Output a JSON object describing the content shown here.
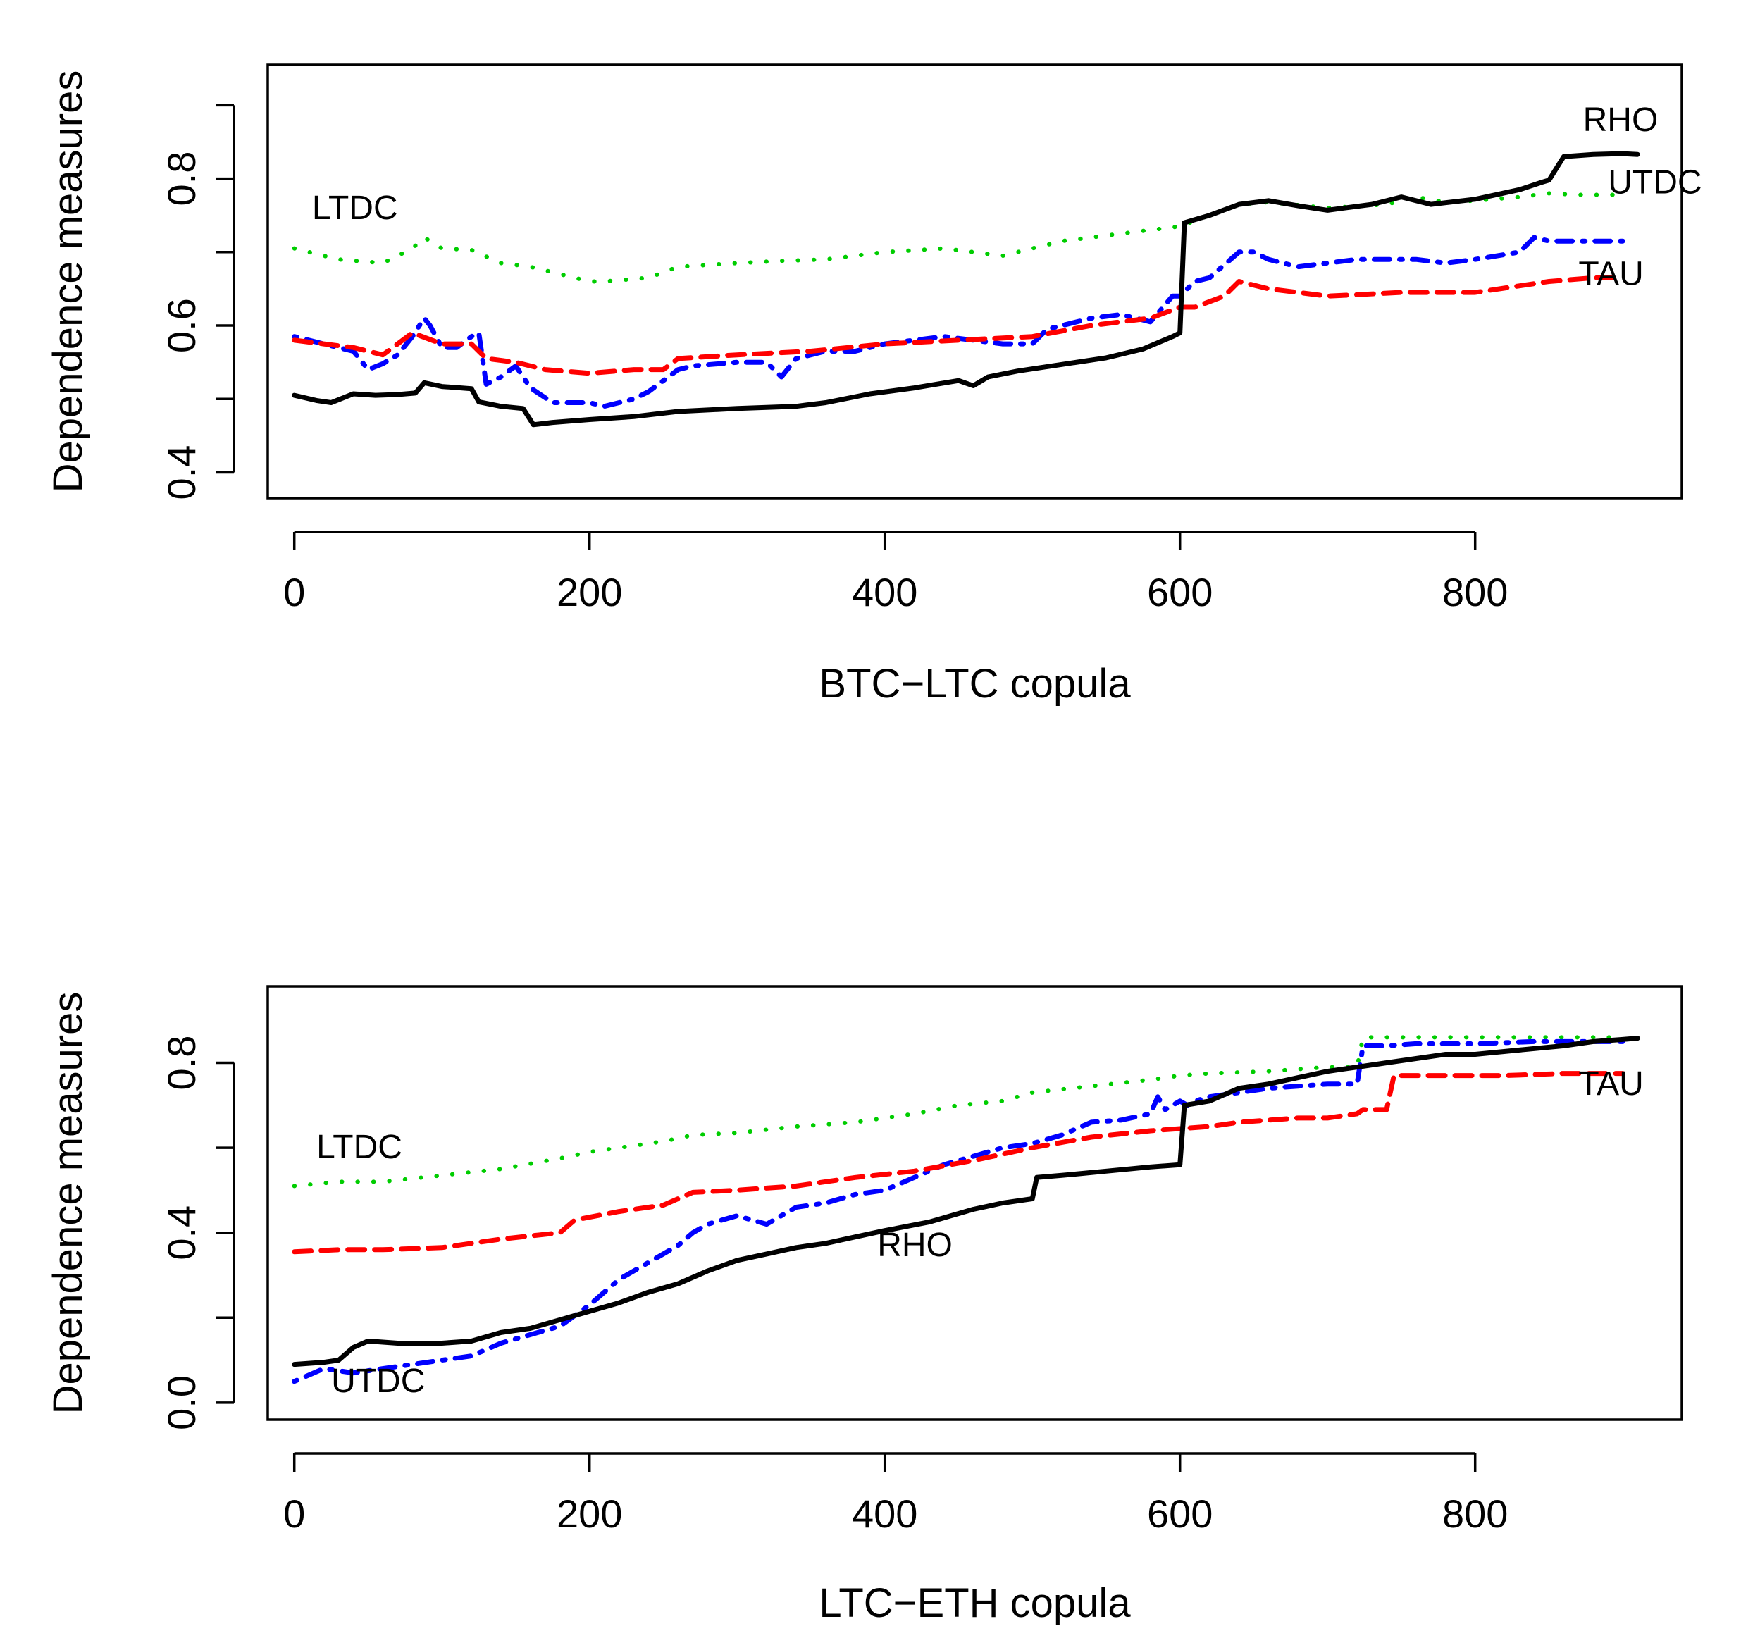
{
  "colors": {
    "RHO": "#000000",
    "TAU": "#ff0000",
    "UTDC": "#0000ff",
    "LTDC": "#00cd00"
  },
  "chart_data": [
    {
      "type": "line",
      "xlabel": "BTC−LTC copula",
      "ylabel": "Dependence measures",
      "xlim": [
        -18,
        940
      ],
      "ylim": [
        0.365,
        0.955
      ],
      "xticks": [
        "0",
        "200",
        "400",
        "600",
        "800"
      ],
      "yticks": [
        "0.4",
        "0.6",
        "0.8"
      ],
      "grid": false,
      "labels": [
        {
          "text": "RHO",
          "series": "RHO",
          "x": 873,
          "y": 0.865
        },
        {
          "text": "UTDC",
          "series": "UTDC",
          "x": 890,
          "y": 0.78
        },
        {
          "text": "TAU",
          "series": "TAU",
          "x": 870,
          "y": 0.655
        },
        {
          "text": "LTDC",
          "series": "LTDC",
          "x": 12,
          "y": 0.745
        }
      ],
      "series": [
        {
          "name": "RHO",
          "style": "solid",
          "x": [
            0,
            15,
            25,
            40,
            55,
            70,
            82,
            88,
            100,
            120,
            125,
            140,
            155,
            162,
            175,
            200,
            230,
            260,
            300,
            340,
            360,
            390,
            420,
            450,
            460,
            470,
            490,
            520,
            550,
            575,
            595,
            600,
            603,
            620,
            640,
            660,
            680,
            700,
            730,
            750,
            770,
            800,
            830,
            845,
            850,
            860,
            880,
            900,
            910
          ],
          "y": [
            0.505,
            0.498,
            0.495,
            0.507,
            0.505,
            0.506,
            0.508,
            0.522,
            0.517,
            0.514,
            0.496,
            0.49,
            0.487,
            0.465,
            0.468,
            0.472,
            0.476,
            0.483,
            0.487,
            0.49,
            0.495,
            0.507,
            0.515,
            0.525,
            0.518,
            0.53,
            0.538,
            0.547,
            0.556,
            0.568,
            0.585,
            0.59,
            0.74,
            0.75,
            0.765,
            0.77,
            0.763,
            0.757,
            0.765,
            0.775,
            0.765,
            0.772,
            0.785,
            0.795,
            0.798,
            0.83,
            0.833,
            0.834,
            0.833
          ]
        },
        {
          "name": "TAU",
          "style": "dashed",
          "x": [
            0,
            20,
            40,
            60,
            80,
            100,
            120,
            130,
            150,
            170,
            200,
            230,
            250,
            260,
            300,
            350,
            400,
            450,
            500,
            540,
            580,
            600,
            610,
            630,
            640,
            660,
            700,
            750,
            800,
            850,
            880,
            900
          ],
          "y": [
            0.58,
            0.575,
            0.57,
            0.56,
            0.59,
            0.575,
            0.575,
            0.555,
            0.55,
            0.54,
            0.535,
            0.54,
            0.54,
            0.555,
            0.56,
            0.565,
            0.575,
            0.58,
            0.585,
            0.6,
            0.61,
            0.625,
            0.625,
            0.64,
            0.66,
            0.65,
            0.64,
            0.645,
            0.645,
            0.66,
            0.665,
            0.665
          ]
        },
        {
          "name": "UTDC",
          "style": "dotdash",
          "x": [
            0,
            20,
            40,
            50,
            60,
            70,
            80,
            88,
            92,
            100,
            110,
            120,
            125,
            130,
            140,
            150,
            160,
            175,
            190,
            200,
            210,
            230,
            240,
            260,
            270,
            300,
            320,
            330,
            340,
            360,
            380,
            400,
            440,
            460,
            480,
            500,
            510,
            540,
            560,
            580,
            595,
            600,
            610,
            620,
            640,
            650,
            660,
            680,
            700,
            720,
            740,
            760,
            780,
            800,
            830,
            840,
            850,
            870,
            900
          ],
          "y": [
            0.585,
            0.575,
            0.565,
            0.54,
            0.548,
            0.56,
            0.585,
            0.61,
            0.6,
            0.57,
            0.57,
            0.585,
            0.59,
            0.52,
            0.53,
            0.545,
            0.515,
            0.495,
            0.495,
            0.495,
            0.49,
            0.5,
            0.51,
            0.54,
            0.545,
            0.55,
            0.55,
            0.53,
            0.555,
            0.565,
            0.565,
            0.575,
            0.585,
            0.58,
            0.575,
            0.575,
            0.595,
            0.61,
            0.615,
            0.605,
            0.64,
            0.64,
            0.66,
            0.665,
            0.7,
            0.7,
            0.69,
            0.68,
            0.685,
            0.69,
            0.69,
            0.69,
            0.685,
            0.69,
            0.7,
            0.72,
            0.715,
            0.715,
            0.715
          ]
        },
        {
          "name": "LTDC",
          "style": "dotted",
          "x": [
            0,
            30,
            60,
            80,
            88,
            100,
            120,
            140,
            160,
            180,
            200,
            210,
            240,
            260,
            300,
            330,
            360,
            400,
            440,
            460,
            480,
            500,
            520,
            560,
            600,
            620,
            640,
            660,
            700,
            740,
            760,
            780,
            800,
            830,
            850,
            870,
            900
          ],
          "y": [
            0.705,
            0.69,
            0.685,
            0.705,
            0.72,
            0.705,
            0.703,
            0.685,
            0.68,
            0.67,
            0.66,
            0.66,
            0.665,
            0.68,
            0.685,
            0.688,
            0.69,
            0.7,
            0.705,
            0.7,
            0.695,
            0.705,
            0.715,
            0.725,
            0.735,
            0.75,
            0.765,
            0.768,
            0.76,
            0.765,
            0.775,
            0.768,
            0.77,
            0.775,
            0.78,
            0.778,
            0.778
          ]
        }
      ]
    },
    {
      "type": "line",
      "xlabel": "LTC−ETH copula",
      "ylabel": "Dependence measures",
      "xlim": [
        -18,
        940
      ],
      "ylim": [
        -0.04,
        0.98
      ],
      "xticks": [
        "0",
        "200",
        "400",
        "600",
        "800"
      ],
      "yticks": [
        "0.0",
        "0.4",
        "0.8"
      ],
      "grid": false,
      "labels": [
        {
          "text": "TAU",
          "series": "TAU",
          "x": 870,
          "y": 0.725
        },
        {
          "text": "LTDC",
          "series": "LTDC",
          "x": 15,
          "y": 0.575
        },
        {
          "text": "RHO",
          "series": "RHO",
          "x": 395,
          "y": 0.345
        },
        {
          "text": "UTDC",
          "series": "UTDC",
          "x": 25,
          "y": 0.025
        }
      ],
      "series": [
        {
          "name": "RHO",
          "style": "solid",
          "x": [
            0,
            20,
            30,
            40,
            50,
            70,
            100,
            120,
            140,
            160,
            180,
            200,
            220,
            240,
            260,
            280,
            300,
            320,
            340,
            360,
            380,
            400,
            430,
            460,
            480,
            500,
            503,
            520,
            550,
            580,
            600,
            603,
            620,
            640,
            660,
            680,
            700,
            720,
            740,
            760,
            780,
            800,
            830,
            860,
            880,
            900,
            910
          ],
          "y": [
            0.09,
            0.095,
            0.1,
            0.13,
            0.145,
            0.14,
            0.14,
            0.145,
            0.165,
            0.175,
            0.195,
            0.215,
            0.235,
            0.26,
            0.28,
            0.31,
            0.335,
            0.35,
            0.365,
            0.375,
            0.39,
            0.405,
            0.425,
            0.455,
            0.47,
            0.48,
            0.53,
            0.535,
            0.545,
            0.555,
            0.56,
            0.7,
            0.71,
            0.74,
            0.75,
            0.765,
            0.78,
            0.79,
            0.8,
            0.81,
            0.82,
            0.82,
            0.83,
            0.84,
            0.85,
            0.855,
            0.858
          ]
        },
        {
          "name": "TAU",
          "style": "dashed",
          "x": [
            0,
            30,
            60,
            100,
            140,
            180,
            190,
            220,
            250,
            270,
            300,
            340,
            380,
            420,
            460,
            500,
            540,
            580,
            600,
            620,
            640,
            680,
            700,
            720,
            724,
            740,
            745,
            780,
            820,
            860,
            900
          ],
          "y": [
            0.355,
            0.36,
            0.36,
            0.365,
            0.385,
            0.4,
            0.43,
            0.45,
            0.465,
            0.495,
            0.5,
            0.51,
            0.53,
            0.545,
            0.57,
            0.6,
            0.625,
            0.64,
            0.645,
            0.65,
            0.66,
            0.67,
            0.67,
            0.68,
            0.69,
            0.69,
            0.77,
            0.77,
            0.77,
            0.775,
            0.775
          ]
        },
        {
          "name": "UTDC",
          "style": "dotdash",
          "x": [
            0,
            20,
            40,
            60,
            80,
            100,
            120,
            140,
            160,
            180,
            200,
            220,
            240,
            260,
            270,
            280,
            300,
            320,
            340,
            360,
            380,
            400,
            420,
            440,
            460,
            480,
            500,
            520,
            540,
            560,
            580,
            585,
            590,
            600,
            605,
            610,
            620,
            640,
            660,
            680,
            700,
            720,
            724,
            740,
            760,
            800,
            840,
            880,
            900
          ],
          "y": [
            0.05,
            0.08,
            0.07,
            0.08,
            0.09,
            0.1,
            0.11,
            0.14,
            0.16,
            0.18,
            0.23,
            0.29,
            0.33,
            0.37,
            0.4,
            0.42,
            0.44,
            0.42,
            0.46,
            0.47,
            0.49,
            0.5,
            0.53,
            0.56,
            0.58,
            0.6,
            0.61,
            0.63,
            0.66,
            0.665,
            0.68,
            0.72,
            0.69,
            0.71,
            0.7,
            0.71,
            0.72,
            0.73,
            0.74,
            0.745,
            0.75,
            0.75,
            0.84,
            0.84,
            0.845,
            0.845,
            0.85,
            0.85,
            0.85
          ]
        },
        {
          "name": "LTDC",
          "style": "dotted",
          "x": [
            0,
            30,
            60,
            100,
            140,
            180,
            200,
            220,
            250,
            270,
            300,
            340,
            380,
            420,
            450,
            480,
            500,
            540,
            580,
            600,
            620,
            660,
            700,
            720,
            724,
            760,
            800,
            850,
            900
          ],
          "y": [
            0.51,
            0.52,
            0.52,
            0.535,
            0.55,
            0.575,
            0.59,
            0.6,
            0.615,
            0.63,
            0.635,
            0.65,
            0.66,
            0.68,
            0.7,
            0.71,
            0.73,
            0.745,
            0.76,
            0.77,
            0.775,
            0.78,
            0.79,
            0.79,
            0.86,
            0.86,
            0.86,
            0.86,
            0.86
          ]
        }
      ]
    }
  ]
}
